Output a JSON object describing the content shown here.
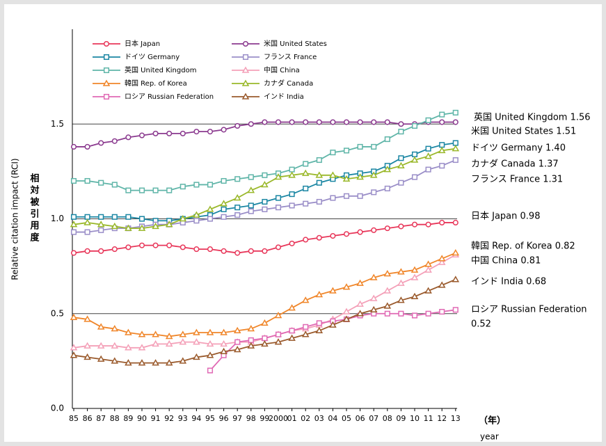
{
  "chart_data": {
    "type": "line",
    "ylabel": "Relative citation impact (RCI)",
    "ylabel_ja": "相対被引用度",
    "xlabel": "（年）",
    "xlabel_en": "year",
    "categories": [
      "85",
      "86",
      "87",
      "88",
      "89",
      "90",
      "91",
      "92",
      "93",
      "94",
      "95",
      "96",
      "97",
      "98",
      "99",
      "2000",
      "01",
      "02",
      "03",
      "04",
      "05",
      "06",
      "07",
      "08",
      "09",
      "10",
      "11",
      "12",
      "13"
    ],
    "ylim": [
      0,
      2.0
    ],
    "yticks": [
      {
        "value": 0,
        "label": "0.0"
      },
      0.5,
      {
        "value": 1,
        "label": "1.0"
      },
      1.5
    ],
    "grid": true,
    "legend": "top-left",
    "series": [
      {
        "name": "日本 Japan",
        "color": "#e8375a",
        "marker": "circle",
        "values": [
          0.82,
          0.83,
          0.83,
          0.84,
          0.85,
          0.86,
          0.86,
          0.86,
          0.85,
          0.84,
          0.84,
          0.83,
          0.82,
          0.83,
          0.83,
          0.85,
          0.87,
          0.89,
          0.9,
          0.91,
          0.92,
          0.93,
          0.94,
          0.95,
          0.96,
          0.97,
          0.97,
          0.98,
          0.98
        ]
      },
      {
        "name": "米国 United States",
        "color": "#8b3a8f",
        "marker": "circle",
        "values": [
          1.38,
          1.38,
          1.4,
          1.41,
          1.43,
          1.44,
          1.45,
          1.45,
          1.45,
          1.46,
          1.46,
          1.47,
          1.49,
          1.5,
          1.51,
          1.51,
          1.51,
          1.51,
          1.51,
          1.51,
          1.51,
          1.51,
          1.51,
          1.51,
          1.5,
          1.5,
          1.51,
          1.51,
          1.51
        ]
      },
      {
        "name": "ドイツ Germany",
        "color": "#1a86a3",
        "marker": "square",
        "values": [
          1.01,
          1.01,
          1.01,
          1.01,
          1.01,
          1.0,
          0.99,
          0.99,
          1.0,
          1.01,
          1.02,
          1.05,
          1.06,
          1.07,
          1.09,
          1.11,
          1.13,
          1.16,
          1.19,
          1.21,
          1.23,
          1.24,
          1.25,
          1.28,
          1.32,
          1.34,
          1.37,
          1.39,
          1.4
        ]
      },
      {
        "name": "フランス France",
        "color": "#9a8ec8",
        "marker": "square",
        "values": [
          0.93,
          0.93,
          0.94,
          0.95,
          0.95,
          0.96,
          0.97,
          0.97,
          0.98,
          0.99,
          1.0,
          1.01,
          1.02,
          1.04,
          1.05,
          1.06,
          1.07,
          1.08,
          1.09,
          1.11,
          1.12,
          1.12,
          1.14,
          1.16,
          1.19,
          1.22,
          1.26,
          1.28,
          1.31
        ]
      },
      {
        "name": "英国 United Kingdom",
        "color": "#5fb5a8",
        "marker": "square",
        "values": [
          1.2,
          1.2,
          1.19,
          1.18,
          1.15,
          1.15,
          1.15,
          1.15,
          1.17,
          1.18,
          1.18,
          1.2,
          1.21,
          1.22,
          1.23,
          1.24,
          1.26,
          1.29,
          1.31,
          1.35,
          1.36,
          1.38,
          1.38,
          1.42,
          1.46,
          1.49,
          1.52,
          1.55,
          1.56
        ]
      },
      {
        "name": "中国 China",
        "color": "#f4a0b8",
        "marker": "triangle",
        "values": [
          0.32,
          0.33,
          0.33,
          0.33,
          0.32,
          0.32,
          0.34,
          0.34,
          0.35,
          0.35,
          0.34,
          0.34,
          0.35,
          0.35,
          0.37,
          0.39,
          0.41,
          0.42,
          0.44,
          0.47,
          0.51,
          0.55,
          0.58,
          0.62,
          0.66,
          0.69,
          0.73,
          0.77,
          0.81
        ]
      },
      {
        "name": "韓国 Rep. of Korea",
        "color": "#f0862a",
        "marker": "triangle",
        "values": [
          0.48,
          0.47,
          0.43,
          0.42,
          0.4,
          0.39,
          0.39,
          0.38,
          0.39,
          0.4,
          0.4,
          0.4,
          0.41,
          0.42,
          0.45,
          0.49,
          0.53,
          0.57,
          0.6,
          0.62,
          0.64,
          0.66,
          0.69,
          0.71,
          0.72,
          0.73,
          0.76,
          0.79,
          0.82
        ]
      },
      {
        "name": "カナダ Canada",
        "color": "#9ab82a",
        "marker": "triangle",
        "values": [
          0.97,
          0.98,
          0.97,
          0.96,
          0.95,
          0.95,
          0.96,
          0.97,
          1.0,
          1.02,
          1.05,
          1.08,
          1.11,
          1.15,
          1.18,
          1.22,
          1.23,
          1.24,
          1.23,
          1.23,
          1.21,
          1.22,
          1.23,
          1.26,
          1.28,
          1.31,
          1.33,
          1.36,
          1.37
        ]
      },
      {
        "name": "ロシア Russian Federation",
        "color": "#e069b4",
        "marker": "square",
        "values": [
          null,
          null,
          null,
          null,
          null,
          null,
          null,
          null,
          null,
          null,
          0.2,
          0.28,
          0.35,
          0.36,
          0.37,
          0.39,
          0.41,
          0.43,
          0.45,
          0.46,
          0.47,
          0.49,
          0.5,
          0.5,
          0.5,
          0.49,
          0.5,
          0.51,
          0.52
        ]
      },
      {
        "name": "インド India",
        "color": "#9a5a2c",
        "marker": "triangle",
        "values": [
          0.28,
          0.27,
          0.26,
          0.25,
          0.24,
          0.24,
          0.24,
          0.24,
          0.25,
          0.27,
          0.28,
          0.3,
          0.31,
          0.33,
          0.34,
          0.35,
          0.37,
          0.39,
          0.41,
          0.44,
          0.47,
          0.5,
          0.52,
          0.54,
          0.57,
          0.59,
          0.62,
          0.65,
          0.68
        ]
      }
    ],
    "annotations": [
      "英国 United Kingdom  1.56",
      "米国 United States  1.51",
      "ドイツ Germany  1.40",
      "カナダ Canada  1.37",
      "フランス France  1.31",
      "日本 Japan  0.98",
      "韓国 Rep. of Korea  0.82",
      "中国 China  0.81",
      "インド India  0.68",
      "ロシア Russian Federation",
      "0.52"
    ]
  }
}
